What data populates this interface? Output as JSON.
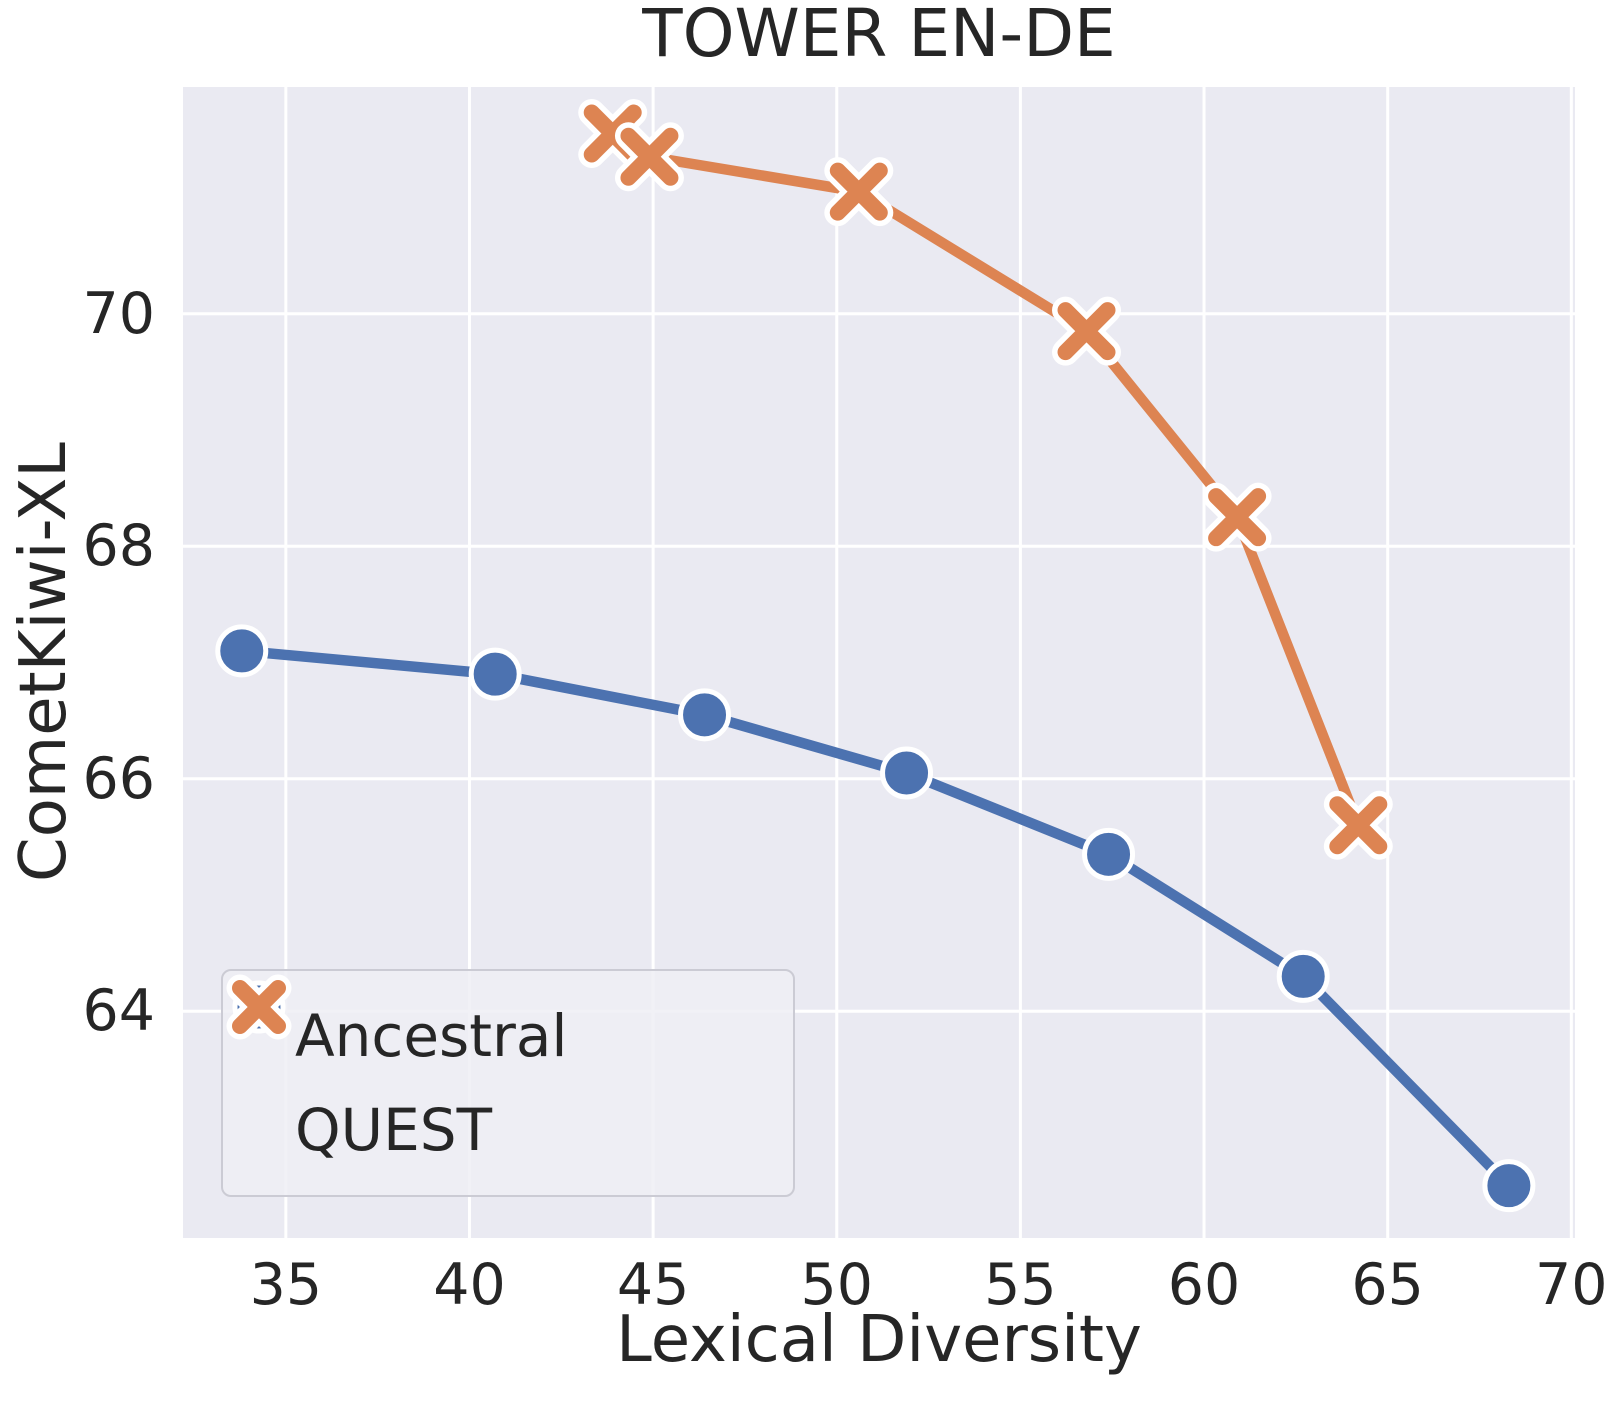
{
  "style": {
    "plot_bg": "#eaeaf2",
    "grid_color": "#ffffff",
    "text_color": "#262626",
    "legend_border": "#cbcbd4"
  },
  "chart_data": {
    "type": "line",
    "title": "TOWER EN-DE",
    "xlabel": "Lexical Diversity",
    "ylabel": "CometKiwi-XL",
    "xlim": [
      32.2,
      70.1
    ],
    "ylim": [
      62.05,
      71.95
    ],
    "xticks": [
      35,
      40,
      45,
      50,
      55,
      60,
      65,
      70
    ],
    "yticks": [
      64,
      66,
      68,
      70
    ],
    "grid": true,
    "legend_position": "lower left",
    "series": [
      {
        "name": "Ancestral",
        "marker": "circle",
        "color": "#4c72b0",
        "points": [
          [
            33.8,
            67.1
          ],
          [
            40.7,
            66.9
          ],
          [
            46.4,
            66.55
          ],
          [
            51.9,
            66.05
          ],
          [
            57.4,
            65.35
          ],
          [
            62.7,
            64.3
          ],
          [
            68.3,
            62.5
          ]
        ]
      },
      {
        "name": "QUEST",
        "marker": "x",
        "color": "#dd8452",
        "points": [
          [
            43.9,
            71.55
          ],
          [
            44.9,
            71.35
          ],
          [
            50.6,
            71.05
          ],
          [
            56.8,
            69.85
          ],
          [
            60.9,
            68.25
          ],
          [
            64.2,
            65.6
          ]
        ]
      }
    ]
  }
}
